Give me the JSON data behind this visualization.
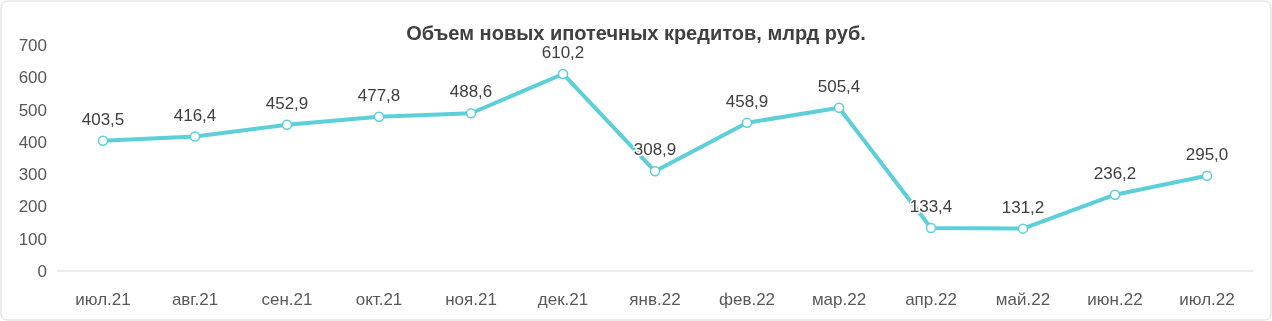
{
  "chart_data": {
    "type": "line",
    "title": "Объем новых ипотечных кредитов, млрд руб.",
    "categories": [
      "июл.21",
      "авг.21",
      "сен.21",
      "окт.21",
      "ноя.21",
      "дек.21",
      "янв.22",
      "фев.22",
      "мар.22",
      "апр.22",
      "май.22",
      "июн.22",
      "июл.22"
    ],
    "series": [
      {
        "color": "#5ccfd8",
        "values": [
          403.5,
          416.4,
          452.9,
          477.8,
          488.6,
          610.2,
          308.9,
          458.9,
          505.4,
          133.4,
          131.2,
          236.2,
          295.0
        ],
        "value_labels": [
          "403,5",
          "416,4",
          "452,9",
          "477,8",
          "488,6",
          "610,2",
          "308,9",
          "458,9",
          "505,4",
          "133,4",
          "131,2",
          "236,2",
          "295,0"
        ]
      }
    ],
    "ylim": [
      0,
      700
    ],
    "yticks": [
      0,
      100,
      200,
      300,
      400,
      500,
      600,
      700
    ],
    "marker": "circle",
    "line_style": "solid"
  }
}
